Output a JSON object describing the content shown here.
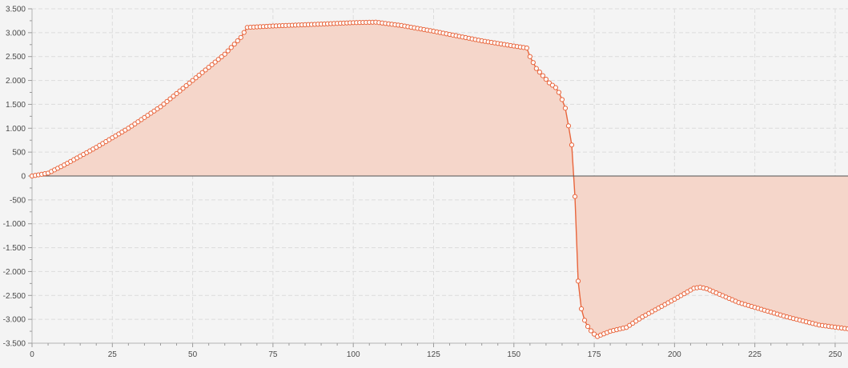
{
  "colors": {
    "background": "#f4f4f4",
    "plot_background": "#f4f4f4",
    "series_line": "#e8653c",
    "series_fill": "#f5d6ca",
    "marker_fill": "#ffffff",
    "grid": "#dcdcdc",
    "zero_line": "#505050"
  },
  "chart_data": {
    "type": "area",
    "title": "",
    "xlabel": "",
    "ylabel": "",
    "xlim": [
      0,
      254
    ],
    "ylim": [
      -3500,
      3500
    ],
    "grid": true,
    "legend": "none",
    "x_ticks": [
      "0",
      "25",
      "50",
      "75",
      "100",
      "125",
      "150",
      "175",
      "200",
      "225",
      "250"
    ],
    "y_ticks": [
      "3.500",
      "3.000",
      "2.500",
      "2.000",
      "1.500",
      "1.000",
      "500",
      "0",
      "-500",
      "-1.000",
      "-1.500",
      "-2.000",
      "-2.500",
      "-3.000",
      "-3.500"
    ],
    "x_tick_values": [
      0,
      25,
      50,
      75,
      100,
      125,
      150,
      175,
      200,
      225,
      250
    ],
    "y_tick_values": [
      3500,
      3000,
      2500,
      2000,
      1500,
      1000,
      500,
      0,
      -500,
      -1000,
      -1500,
      -2000,
      -2500,
      -3000,
      -3500
    ],
    "series": [
      {
        "markers": true,
        "filled_to_zero": true,
        "keypoints": [
          [
            0,
            0
          ],
          [
            5,
            60
          ],
          [
            10,
            230
          ],
          [
            20,
            600
          ],
          [
            30,
            1000
          ],
          [
            40,
            1450
          ],
          [
            50,
            2000
          ],
          [
            60,
            2550
          ],
          [
            65,
            2900
          ],
          [
            67,
            3110
          ],
          [
            75,
            3140
          ],
          [
            90,
            3180
          ],
          [
            100,
            3210
          ],
          [
            107,
            3220
          ],
          [
            115,
            3150
          ],
          [
            125,
            3030
          ],
          [
            140,
            2830
          ],
          [
            150,
            2720
          ],
          [
            154,
            2680
          ],
          [
            155,
            2500
          ],
          [
            157,
            2250
          ],
          [
            159,
            2100
          ],
          [
            161,
            1950
          ],
          [
            163,
            1850
          ],
          [
            164,
            1750
          ],
          [
            165,
            1600
          ],
          [
            166,
            1420
          ],
          [
            167,
            1050
          ],
          [
            168,
            650
          ],
          [
            169,
            -430
          ],
          [
            170,
            -2200
          ],
          [
            171,
            -2780
          ],
          [
            172,
            -3020
          ],
          [
            173,
            -3150
          ],
          [
            174,
            -3240
          ],
          [
            175,
            -3310
          ],
          [
            176,
            -3360
          ],
          [
            177,
            -3330
          ],
          [
            180,
            -3250
          ],
          [
            185,
            -3170
          ],
          [
            190,
            -2950
          ],
          [
            200,
            -2580
          ],
          [
            206,
            -2350
          ],
          [
            208,
            -2330
          ],
          [
            210,
            -2360
          ],
          [
            220,
            -2650
          ],
          [
            235,
            -2950
          ],
          [
            245,
            -3120
          ],
          [
            254,
            -3200
          ]
        ]
      }
    ]
  }
}
